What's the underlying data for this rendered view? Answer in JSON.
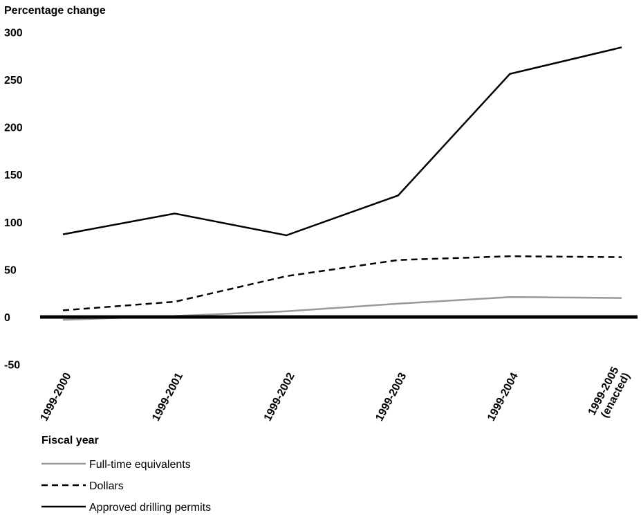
{
  "chart_data": {
    "type": "line",
    "ylabel": "Percentage change",
    "xlabel": "Fiscal year",
    "categories": [
      "1999-2000",
      "1999-2001",
      "1999-2002",
      "1999-2003",
      "1999-2004",
      "1999-2005 (enacted)"
    ],
    "category_lines": [
      [
        "1999-2000"
      ],
      [
        "1999-2001"
      ],
      [
        "1999-2002"
      ],
      [
        "1999-2003"
      ],
      [
        "1999-2004"
      ],
      [
        "1999-2005",
        "(enacted)"
      ]
    ],
    "ylim": [
      -50,
      300
    ],
    "yticks": [
      300,
      250,
      200,
      150,
      100,
      50,
      0,
      -50
    ],
    "grid": false,
    "legend_position": "bottom-left",
    "series": [
      {
        "name": "Full-time equivalents",
        "color": "#999999",
        "style": "solid",
        "values": [
          -3,
          1,
          6,
          14,
          21,
          20
        ]
      },
      {
        "name": "Dollars",
        "color": "#000000",
        "style": "dashed",
        "values": [
          7,
          16,
          43,
          60,
          64,
          63
        ]
      },
      {
        "name": "Approved drilling permits",
        "color": "#000000",
        "style": "solid",
        "values": [
          87,
          109,
          86,
          128,
          256,
          284
        ]
      }
    ]
  }
}
